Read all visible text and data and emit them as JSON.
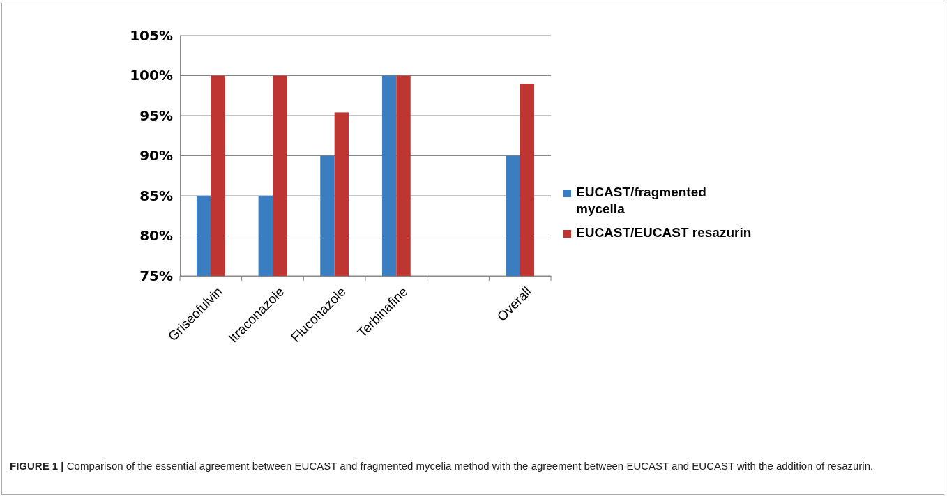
{
  "chart_data": {
    "type": "bar",
    "categories": [
      "Griseofulvin",
      "Itraconazole",
      "Fluconazole",
      "Terbinafine",
      null,
      "Overall"
    ],
    "series": [
      {
        "name": "EUCAST/fragmented mycelia",
        "color": "#3a7dc0",
        "values": [
          85,
          85,
          90,
          100,
          null,
          90
        ]
      },
      {
        "name": "EUCAST/EUCAST resazurin",
        "color": "#be3532",
        "values": [
          100,
          100,
          95.4,
          100,
          null,
          99
        ]
      }
    ],
    "ylim": [
      75,
      105
    ],
    "yticks": [
      {
        "value": 75,
        "label": "75%"
      },
      {
        "value": 80,
        "label": "80%"
      },
      {
        "value": 85,
        "label": "85%"
      },
      {
        "value": 90,
        "label": "90%"
      },
      {
        "value": 95,
        "label": "95%"
      },
      {
        "value": 100,
        "label": "100%"
      },
      {
        "value": 105,
        "label": "105%"
      }
    ],
    "grid": "y",
    "legend": "right",
    "annotations": [
      "FIGURE 1 | Comparison of the essential agreement between EUCAST and fragmented mycelia method with the agreement between EUCAST and EUCAST with the addition of resazurin."
    ]
  }
}
